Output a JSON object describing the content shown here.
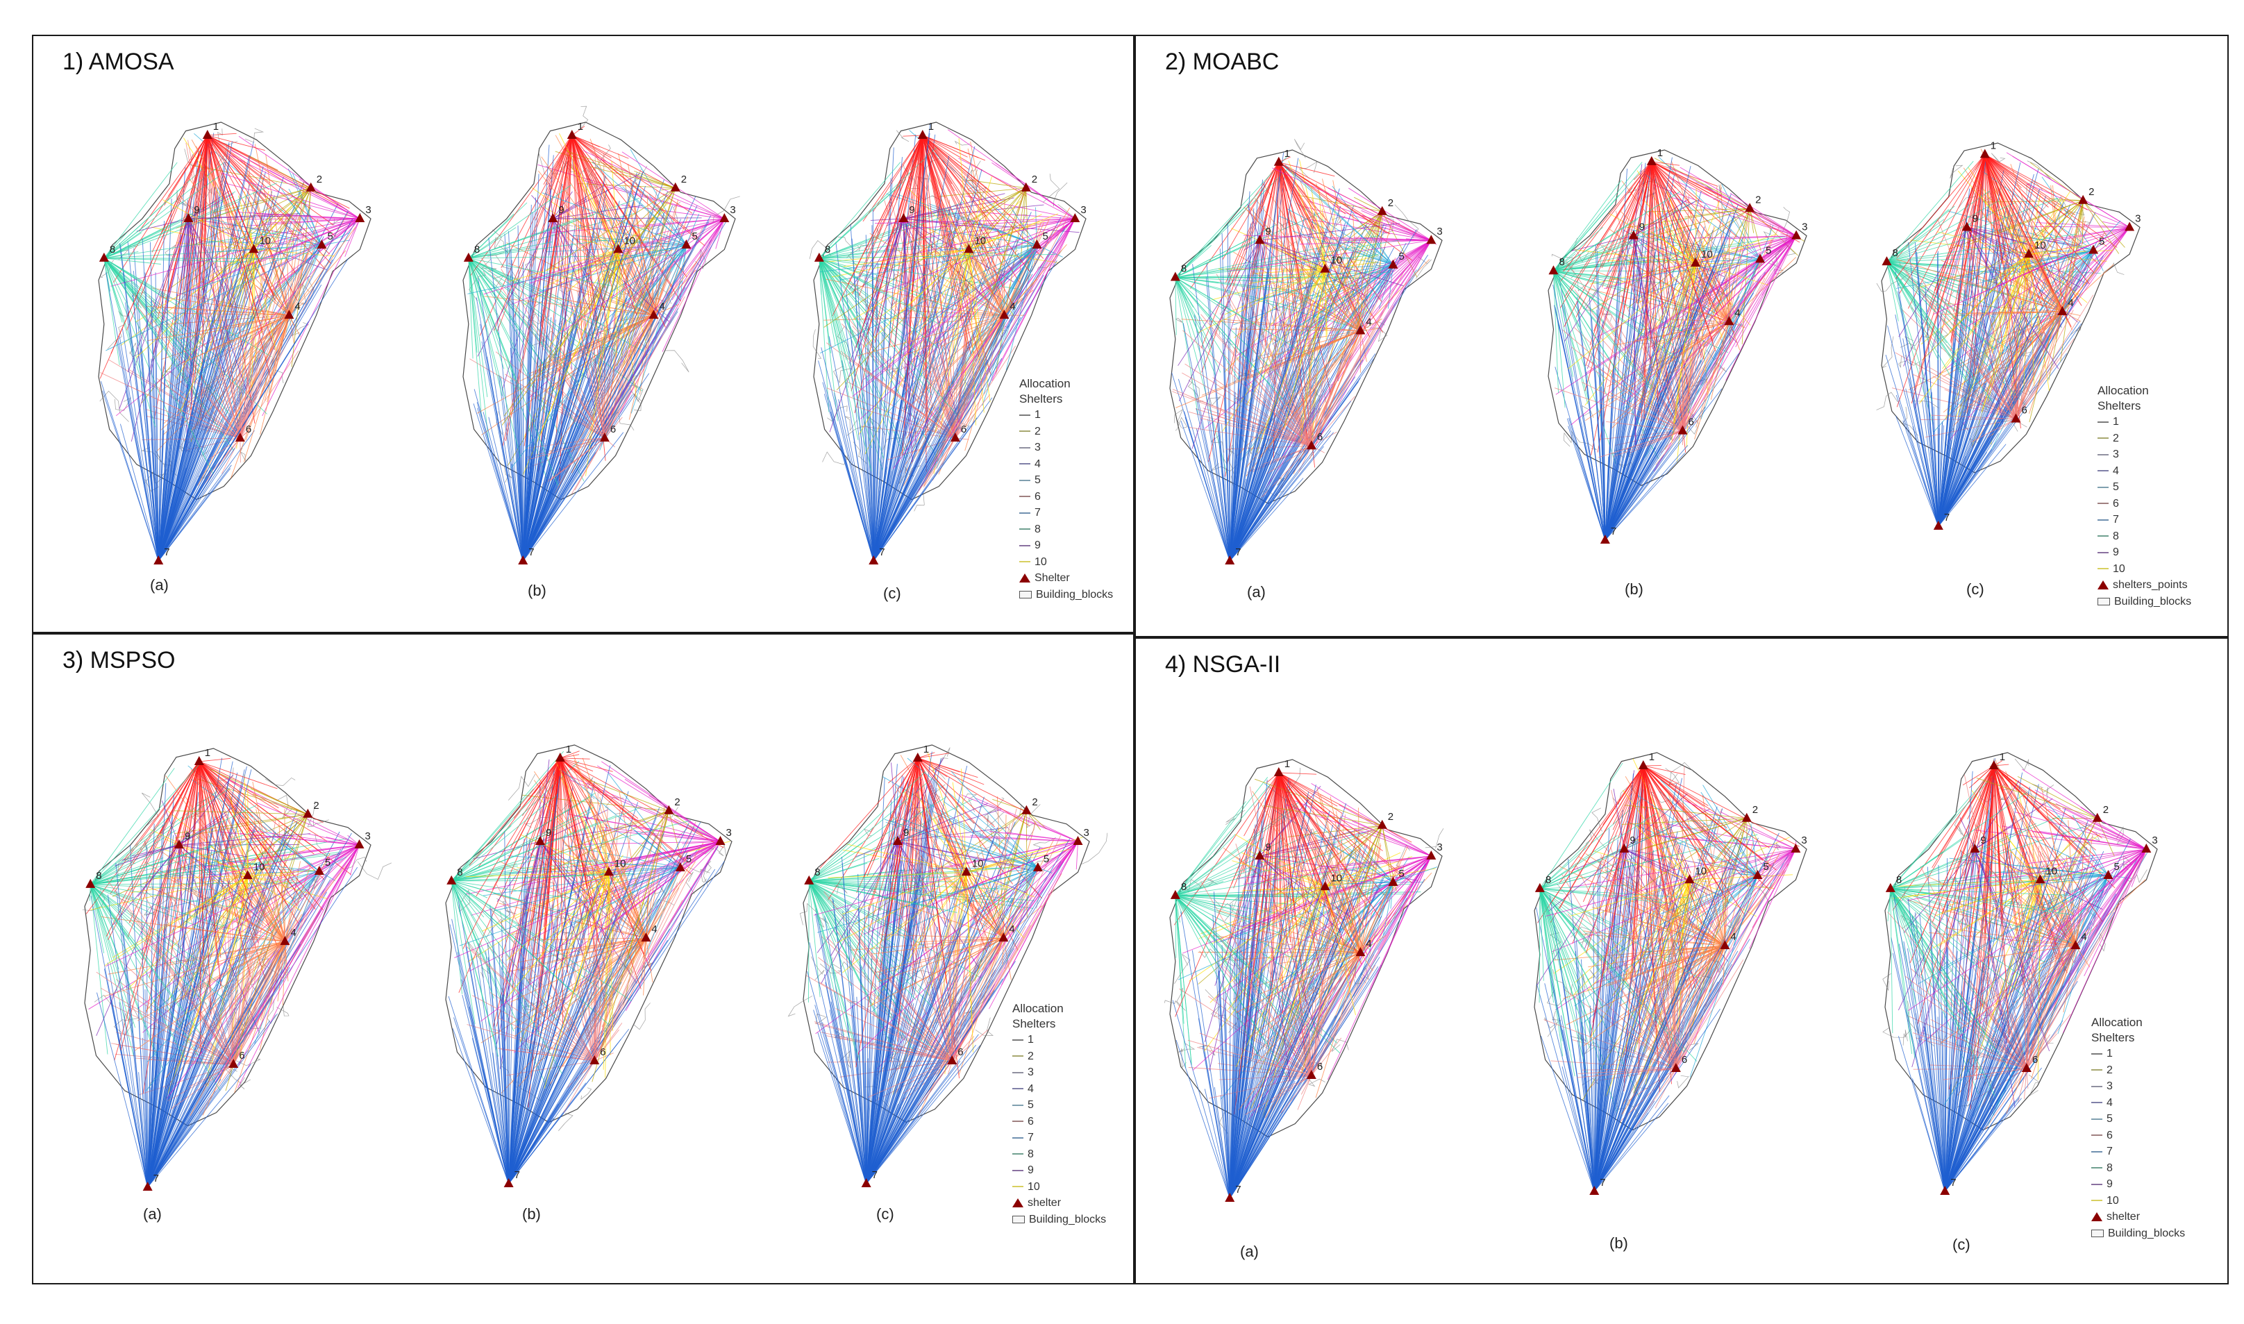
{
  "panels": [
    {
      "title": "1) AMOSA",
      "legend": {
        "title1": "Allocation",
        "title2": "Shelters",
        "items": [
          "1",
          "2",
          "3",
          "4",
          "5",
          "6",
          "7",
          "8",
          "9",
          "10"
        ],
        "shelter_label": "Shelter",
        "blocks_label": "Building_blocks"
      }
    },
    {
      "title": "2) MOABC",
      "legend": {
        "title1": "Allocation",
        "title2": "Shelters",
        "items": [
          "1",
          "2",
          "3",
          "4",
          "5",
          "6",
          "7",
          "8",
          "9",
          "10"
        ],
        "shelter_label": "shelters_points",
        "blocks_label": "Building_blocks"
      }
    },
    {
      "title": "3) MSPSO",
      "legend": {
        "title1": "Allocation",
        "title2": "Shelters",
        "items": [
          "1",
          "2",
          "3",
          "4",
          "5",
          "6",
          "7",
          "8",
          "9",
          "10"
        ],
        "shelter_label": "shelter",
        "blocks_label": "Building_blocks"
      }
    },
    {
      "title": "4) NSGA-II",
      "legend": {
        "title1": "Allocation",
        "title2": "Shelters",
        "items": [
          "1",
          "2",
          "3",
          "4",
          "5",
          "6",
          "7",
          "8",
          "9",
          "10"
        ],
        "shelter_label": "shelter",
        "blocks_label": "Building_blocks"
      }
    }
  ],
  "subplot_labels": [
    "(a)",
    "(b)",
    "(c)"
  ],
  "shelter_numbers": [
    "1",
    "2",
    "3",
    "4",
    "5",
    "6",
    "7",
    "8",
    "9",
    "10"
  ],
  "shelter_colors": {
    "1": "#ff1a1a",
    "2": "#b8a500",
    "3": "#e61ec8",
    "4": "#ff8040",
    "5": "#20a8d8",
    "6": "#f08080",
    "7": "#1f5fd0",
    "8": "#2ed6a6",
    "9": "#7a1fb5",
    "10": "#ffe000"
  },
  "legend_line_colors": [
    "#7a7a7a",
    "#a8a870",
    "#9090a0",
    "#8080a8",
    "#80a0b0",
    "#a08080",
    "#7090b0",
    "#70a090",
    "#8a70a0",
    "#d8d060"
  ],
  "shelter_marker_color": "#8b0000",
  "outline_color": "#4a4a4a"
}
